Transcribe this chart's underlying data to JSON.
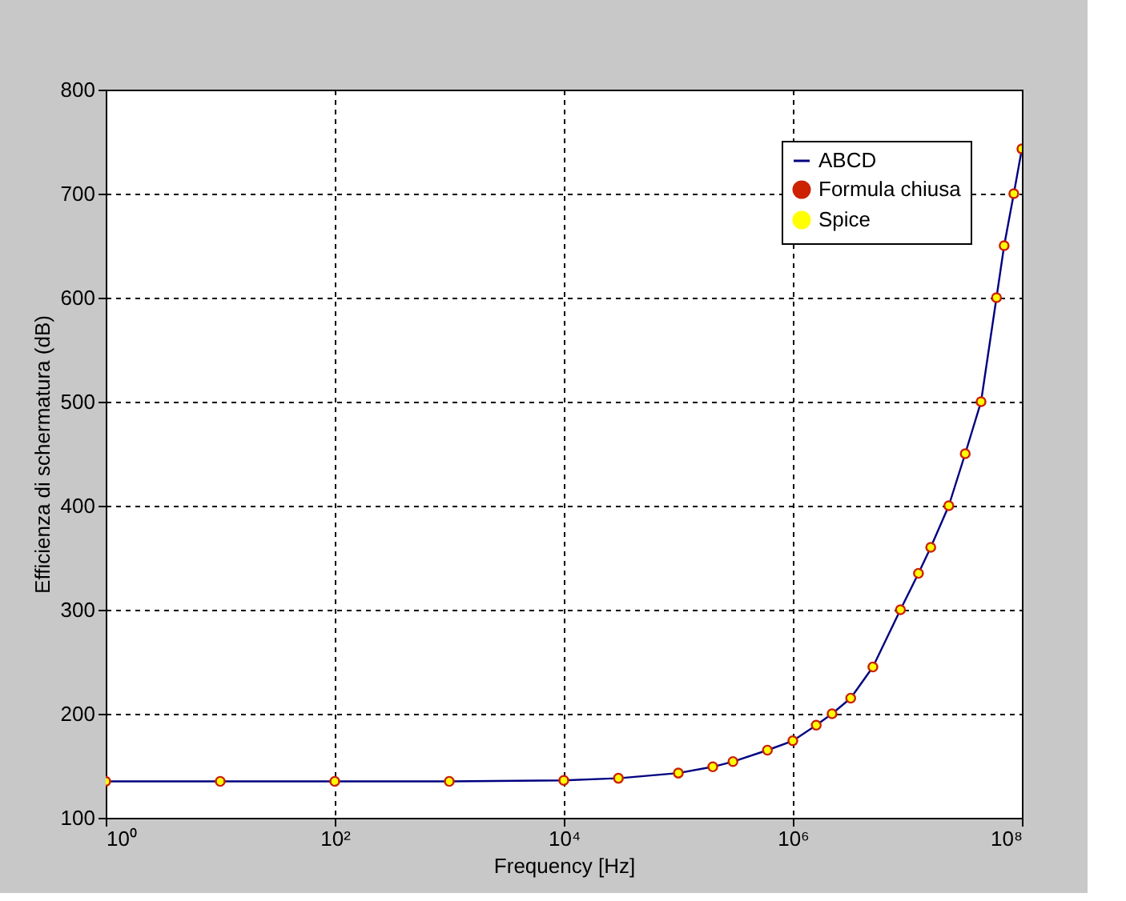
{
  "chart_data": {
    "type": "line",
    "xlabel": "Frequency [Hz]",
    "ylabel": "Efficienza di schermatura (dB)",
    "x": [
      1,
      10,
      100,
      1000,
      10000,
      30000,
      100000,
      200000,
      300000,
      600000,
      1000000,
      1600000,
      2200000,
      3200000,
      5000000,
      8700000,
      12500000,
      16000000,
      23000000,
      32000000,
      44000000,
      60000000,
      70000000,
      85000000,
      100000000
    ],
    "series": [
      {
        "name": "ABCD",
        "type": "line",
        "color": "#000080",
        "values": [
          135,
          135,
          135,
          135,
          136,
          138,
          143,
          149,
          154,
          165,
          174,
          189,
          200,
          215,
          245,
          300,
          335,
          360,
          400,
          450,
          500,
          600,
          650,
          700,
          743
        ]
      },
      {
        "name": "Formula chiusa",
        "type": "scatter",
        "color": "#cc2200",
        "marker": "circle",
        "values": [
          135,
          135,
          135,
          135,
          136,
          138,
          143,
          149,
          154,
          165,
          174,
          189,
          200,
          215,
          245,
          300,
          335,
          360,
          400,
          450,
          500,
          600,
          650,
          700,
          743
        ]
      },
      {
        "name": "Spice",
        "type": "scatter",
        "color": "#ffff00",
        "marker": "circle",
        "values": [
          135,
          135,
          135,
          135,
          136,
          138,
          143,
          149,
          154,
          165,
          174,
          189,
          200,
          215,
          245,
          300,
          335,
          360,
          400,
          450,
          500,
          600,
          650,
          700,
          743
        ]
      }
    ],
    "log": "x",
    "xlim": [
      1,
      100000000
    ],
    "xticks": [
      {
        "value": 1,
        "label": "10⁰"
      },
      {
        "value": 100,
        "label": "10²"
      },
      {
        "value": 10000,
        "label": "10⁴"
      },
      {
        "value": 1000000,
        "label": "10⁶"
      },
      {
        "value": 100000000,
        "label": "10⁸"
      }
    ],
    "ylim": [
      100,
      800
    ],
    "yticks": [
      100,
      200,
      300,
      400,
      500,
      600,
      700,
      800
    ],
    "grid": true,
    "legend": "top right"
  }
}
